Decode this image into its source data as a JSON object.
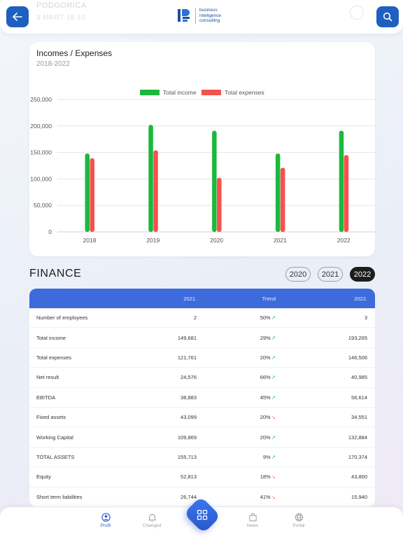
{
  "header": {
    "ghost_title": "PODGORICA",
    "ghost_subtitle": "8 MART 18 10",
    "logo_text": [
      "business",
      "inteligence",
      "consulting"
    ],
    "back_icon": "arrow-left-icon",
    "search_icon": "search-icon"
  },
  "chart_card": {
    "title": "Incomes / Expenses",
    "subtitle": "2018-2022"
  },
  "chart_data": {
    "type": "bar",
    "categories": [
      "2018",
      "2019",
      "2020",
      "2021",
      "2022"
    ],
    "series": [
      {
        "name": "Total income",
        "color": "#1db83c",
        "values": [
          148000,
          202000,
          191000,
          148000,
          191000
        ]
      },
      {
        "name": "Total expenses",
        "color": "#f5514f",
        "values": [
          139000,
          154000,
          102000,
          121000,
          145000
        ]
      }
    ],
    "ylim": [
      0,
      250000
    ],
    "yticks": [
      0,
      50000,
      100000,
      150000,
      200000,
      250000
    ],
    "ytick_labels": [
      "0",
      "50,000",
      "100,000",
      "150,000",
      "200,000",
      "250,000"
    ],
    "legend_position": "top-center",
    "grid": true
  },
  "finance": {
    "title": "FINANCE",
    "years": [
      "2020",
      "2021",
      "2022"
    ],
    "active_year": "2022",
    "columns": [
      "",
      "2021.",
      "Trend",
      "2022."
    ],
    "rows": [
      {
        "label": "Number of employees",
        "prev": "2",
        "trend": "50%",
        "dir": "up",
        "cur": "3"
      },
      {
        "label": "Total income",
        "prev": "149,681",
        "trend": "29%",
        "dir": "up",
        "cur": "193,265"
      },
      {
        "label": "Total expenses",
        "prev": "121,761",
        "trend": "20%",
        "dir": "up",
        "cur": "146,506"
      },
      {
        "label": "Net result",
        "prev": "24,576",
        "trend": "66%",
        "dir": "up",
        "cur": "40,985"
      },
      {
        "label": "EBITDA",
        "prev": "38,883",
        "trend": "45%",
        "dir": "up",
        "cur": "56,614"
      },
      {
        "label": "Fixed assets",
        "prev": "43,099",
        "trend": "20%",
        "dir": "down",
        "cur": "34,551"
      },
      {
        "label": "Working Capital",
        "prev": "109,869",
        "trend": "20%",
        "dir": "up",
        "cur": "132,884"
      },
      {
        "label": "TOTAL ASSETS",
        "prev": "155,713",
        "trend": "9%",
        "dir": "up",
        "cur": "170,374"
      },
      {
        "label": "Equity",
        "prev": "52,813",
        "trend": "18%",
        "dir": "down",
        "cur": "43,800"
      },
      {
        "label": "Short term liabilities",
        "prev": "26,744",
        "trend": "41%",
        "dir": "down",
        "cur": "15,940"
      }
    ]
  },
  "nav": {
    "items": [
      {
        "label": "Profil",
        "icon": "profile-icon",
        "active": true
      },
      {
        "label": "Changed",
        "icon": "bell-icon",
        "active": false
      },
      {
        "label": "News",
        "icon": "bag-icon",
        "active": false
      },
      {
        "label": "Portal",
        "icon": "globe-icon",
        "active": false
      }
    ],
    "center_icon": "grid-icon"
  }
}
